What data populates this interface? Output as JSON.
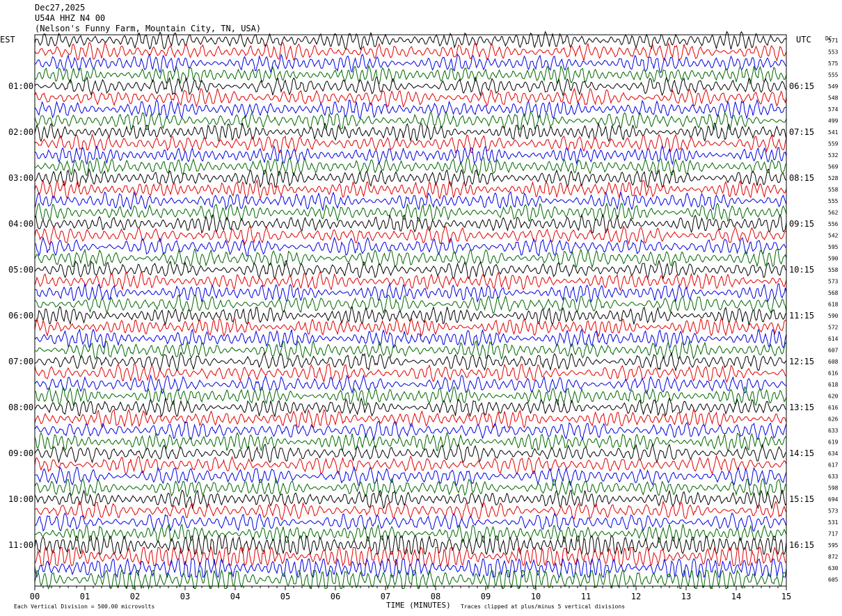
{
  "header": {
    "date": "Dec27,2025",
    "station": "U54A HHZ N4 00",
    "location": "(Nelson's Funny Farm, Mountain City, TN, USA)"
  },
  "chart_data": {
    "type": "line",
    "title": "",
    "left_timezone": "EST",
    "right_timezone": "UTC",
    "dc_header": "DC",
    "xlabel": "TIME (MINUTES)",
    "xlim": [
      0,
      15
    ],
    "x_ticks": [
      "00",
      "01",
      "02",
      "03",
      "04",
      "05",
      "06",
      "07",
      "08",
      "09",
      "10",
      "11",
      "12",
      "13",
      "14",
      "15"
    ],
    "left_hour_labels": [
      "01:00",
      "02:00",
      "03:00",
      "04:00",
      "05:00",
      "06:00",
      "07:00",
      "08:00",
      "09:00",
      "10:00",
      "11:00"
    ],
    "right_hour_labels": [
      "06:15",
      "07:15",
      "08:15",
      "09:15",
      "10:15",
      "11:15",
      "12:15",
      "13:15",
      "14:15",
      "15:15",
      "16:15"
    ],
    "dc_offsets": [
      "571",
      "553",
      "575",
      "555",
      "549",
      "548",
      "574",
      "499",
      "541",
      "559",
      "532",
      "569",
      "528",
      "558",
      "555",
      "562",
      "556",
      "542",
      "595",
      "590",
      "558",
      "573",
      "568",
      "618",
      "590",
      "572",
      "614",
      "607",
      "608",
      "616",
      "618",
      "620",
      "616",
      "626",
      "633",
      "619",
      "634",
      "617",
      "633",
      "598",
      "694",
      "573",
      "531",
      "717",
      "595",
      "872",
      "630",
      "605"
    ],
    "trace_colors": [
      "#000000",
      "#e00000",
      "#0000e0",
      "#006600"
    ],
    "minutes_per_line": 15,
    "lines_per_hour": 4,
    "vertical_division_note": "Each Vertical Division =  500.00 microvolts",
    "clip_note": "Traces clipped at plus/minus 5 vertical divisions"
  }
}
